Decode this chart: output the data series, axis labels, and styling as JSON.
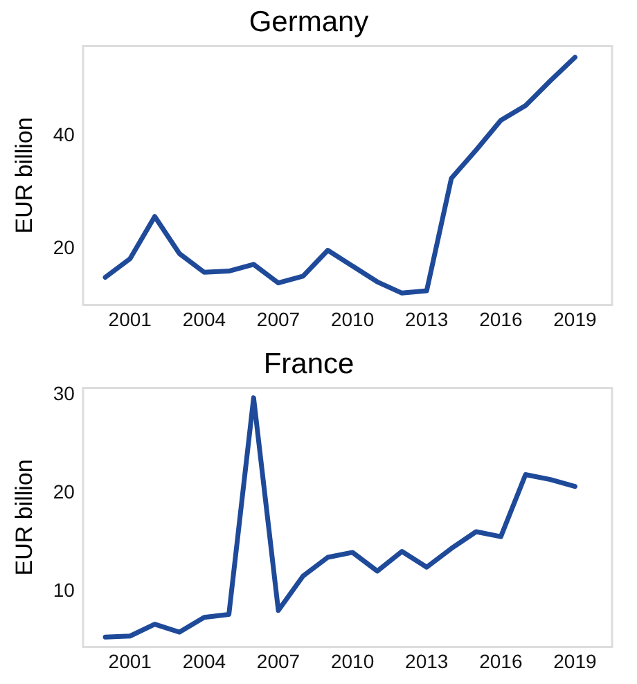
{
  "chart_data": [
    {
      "type": "line",
      "title": "Germany",
      "ylabel": "EUR billion",
      "x": [
        2000,
        2001,
        2002,
        2003,
        2004,
        2005,
        2006,
        2007,
        2008,
        2009,
        2010,
        2011,
        2012,
        2013,
        2014,
        2015,
        2016,
        2017,
        2018,
        2019
      ],
      "series": [
        {
          "color": "#1f4a99",
          "values": [
            14.9,
            18.2,
            25.7,
            19.1,
            15.8,
            16.0,
            17.2,
            13.9,
            15.1,
            19.7,
            16.9,
            14.1,
            12.1,
            12.5,
            32.5,
            37.5,
            42.8,
            45.4,
            49.8,
            54.0
          ]
        }
      ],
      "xlim": [
        1999.1,
        2020.5
      ],
      "xticks": [
        2001,
        2004,
        2007,
        2010,
        2013,
        2016,
        2019
      ],
      "ylim": [
        10,
        56
      ],
      "yticks": [
        20,
        40
      ],
      "grid": false,
      "legend": false,
      "marker": "none",
      "line_style": "solid"
    },
    {
      "type": "line",
      "title": "France",
      "ylabel": "EUR billion",
      "x": [
        2000,
        2001,
        2002,
        2003,
        2004,
        2005,
        2006,
        2007,
        2008,
        2009,
        2010,
        2011,
        2012,
        2013,
        2014,
        2015,
        2016,
        2017,
        2018,
        2019
      ],
      "series": [
        {
          "color": "#1f4a99",
          "values": [
            5.4,
            5.5,
            6.7,
            5.9,
            7.4,
            7.7,
            29.7,
            8.1,
            11.6,
            13.5,
            14.0,
            12.1,
            14.1,
            12.5,
            14.4,
            16.1,
            15.6,
            21.9,
            21.4,
            20.7
          ]
        }
      ],
      "xlim": [
        1999.1,
        2020.5
      ],
      "xticks": [
        2001,
        2004,
        2007,
        2010,
        2013,
        2016,
        2019
      ],
      "ylim": [
        4.4,
        30.7
      ],
      "yticks": [
        10,
        20,
        30
      ],
      "grid": false,
      "legend": false,
      "marker": "none",
      "line_style": "solid"
    }
  ]
}
